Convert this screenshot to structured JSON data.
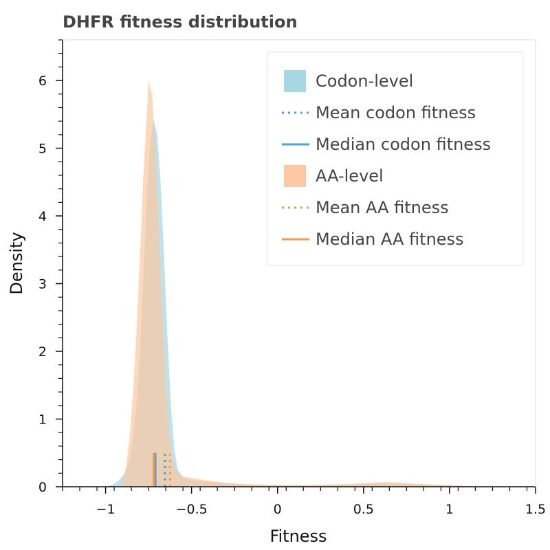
{
  "chart_data": {
    "type": "area",
    "title": "DHFR fitness distribution",
    "xlabel": "Fitness",
    "ylabel": "Density",
    "xlim": [
      -1.25,
      1.5
    ],
    "ylim": [
      0,
      6.6
    ],
    "x_ticks": [
      -1,
      -0.5,
      0,
      0.5,
      1,
      1.5
    ],
    "x_tick_labels": [
      "−1",
      "−0.5",
      "0",
      "0.5",
      "1",
      "1.5"
    ],
    "y_ticks": [
      0,
      1,
      2,
      3,
      4,
      5,
      6
    ],
    "y_tick_labels": [
      "0",
      "1",
      "2",
      "3",
      "4",
      "5",
      "6"
    ],
    "grid": false,
    "legend_position": "top-right",
    "series": [
      {
        "name": "Codon-level",
        "kind": "density",
        "color": "#a3d5e3",
        "points": [
          [
            -1.0,
            0.0
          ],
          [
            -0.96,
            0.03
          ],
          [
            -0.92,
            0.1
          ],
          [
            -0.89,
            0.2
          ],
          [
            -0.86,
            0.4
          ],
          [
            -0.84,
            0.75
          ],
          [
            -0.82,
            1.2
          ],
          [
            -0.8,
            2.0
          ],
          [
            -0.78,
            3.1
          ],
          [
            -0.76,
            4.3
          ],
          [
            -0.74,
            5.1
          ],
          [
            -0.72,
            5.42
          ],
          [
            -0.7,
            5.2
          ],
          [
            -0.68,
            4.5
          ],
          [
            -0.66,
            3.4
          ],
          [
            -0.64,
            2.2
          ],
          [
            -0.62,
            1.2
          ],
          [
            -0.6,
            0.55
          ],
          [
            -0.58,
            0.25
          ],
          [
            -0.55,
            0.14
          ],
          [
            -0.5,
            0.1
          ],
          [
            -0.4,
            0.07
          ],
          [
            -0.3,
            0.05
          ],
          [
            -0.2,
            0.035
          ],
          [
            0.0,
            0.02
          ],
          [
            0.2,
            0.02
          ],
          [
            0.4,
            0.03
          ],
          [
            0.55,
            0.045
          ],
          [
            0.65,
            0.05
          ],
          [
            0.75,
            0.04
          ],
          [
            0.9,
            0.03
          ],
          [
            1.05,
            0.015
          ],
          [
            1.2,
            0.0
          ]
        ]
      },
      {
        "name": "Mean codon fitness",
        "kind": "vline",
        "style": "dotted",
        "color": "#4aa5c6",
        "x": -0.655,
        "height": 0.5
      },
      {
        "name": "Median codon fitness",
        "kind": "vline",
        "style": "solid",
        "color": "#4aa5c6",
        "x": -0.71,
        "height": 0.5
      },
      {
        "name": "AA-level",
        "kind": "density",
        "color": "#fbc79f",
        "points": [
          [
            -0.93,
            0.0
          ],
          [
            -0.9,
            0.05
          ],
          [
            -0.88,
            0.3
          ],
          [
            -0.86,
            0.75
          ],
          [
            -0.84,
            1.4
          ],
          [
            -0.82,
            2.3
          ],
          [
            -0.8,
            3.4
          ],
          [
            -0.78,
            4.6
          ],
          [
            -0.76,
            5.5
          ],
          [
            -0.75,
            6.0
          ],
          [
            -0.73,
            5.8
          ],
          [
            -0.71,
            5.0
          ],
          [
            -0.69,
            3.8
          ],
          [
            -0.67,
            2.6
          ],
          [
            -0.65,
            1.55
          ],
          [
            -0.63,
            0.8
          ],
          [
            -0.61,
            0.38
          ],
          [
            -0.58,
            0.2
          ],
          [
            -0.55,
            0.15
          ],
          [
            -0.5,
            0.13
          ],
          [
            -0.4,
            0.09
          ],
          [
            -0.3,
            0.06
          ],
          [
            -0.2,
            0.04
          ],
          [
            0.0,
            0.025
          ],
          [
            0.2,
            0.025
          ],
          [
            0.4,
            0.04
          ],
          [
            0.55,
            0.06
          ],
          [
            0.62,
            0.07
          ],
          [
            0.7,
            0.065
          ],
          [
            0.8,
            0.045
          ],
          [
            0.95,
            0.025
          ],
          [
            1.1,
            0.01
          ],
          [
            1.2,
            0.0
          ]
        ]
      },
      {
        "name": "Mean AA fitness",
        "kind": "vline",
        "style": "dotted",
        "color": "#f39a4c",
        "x": -0.625,
        "height": 0.5
      },
      {
        "name": "Median AA fitness",
        "kind": "vline",
        "style": "solid",
        "color": "#f39a4c",
        "x": -0.72,
        "height": 0.5
      }
    ]
  }
}
